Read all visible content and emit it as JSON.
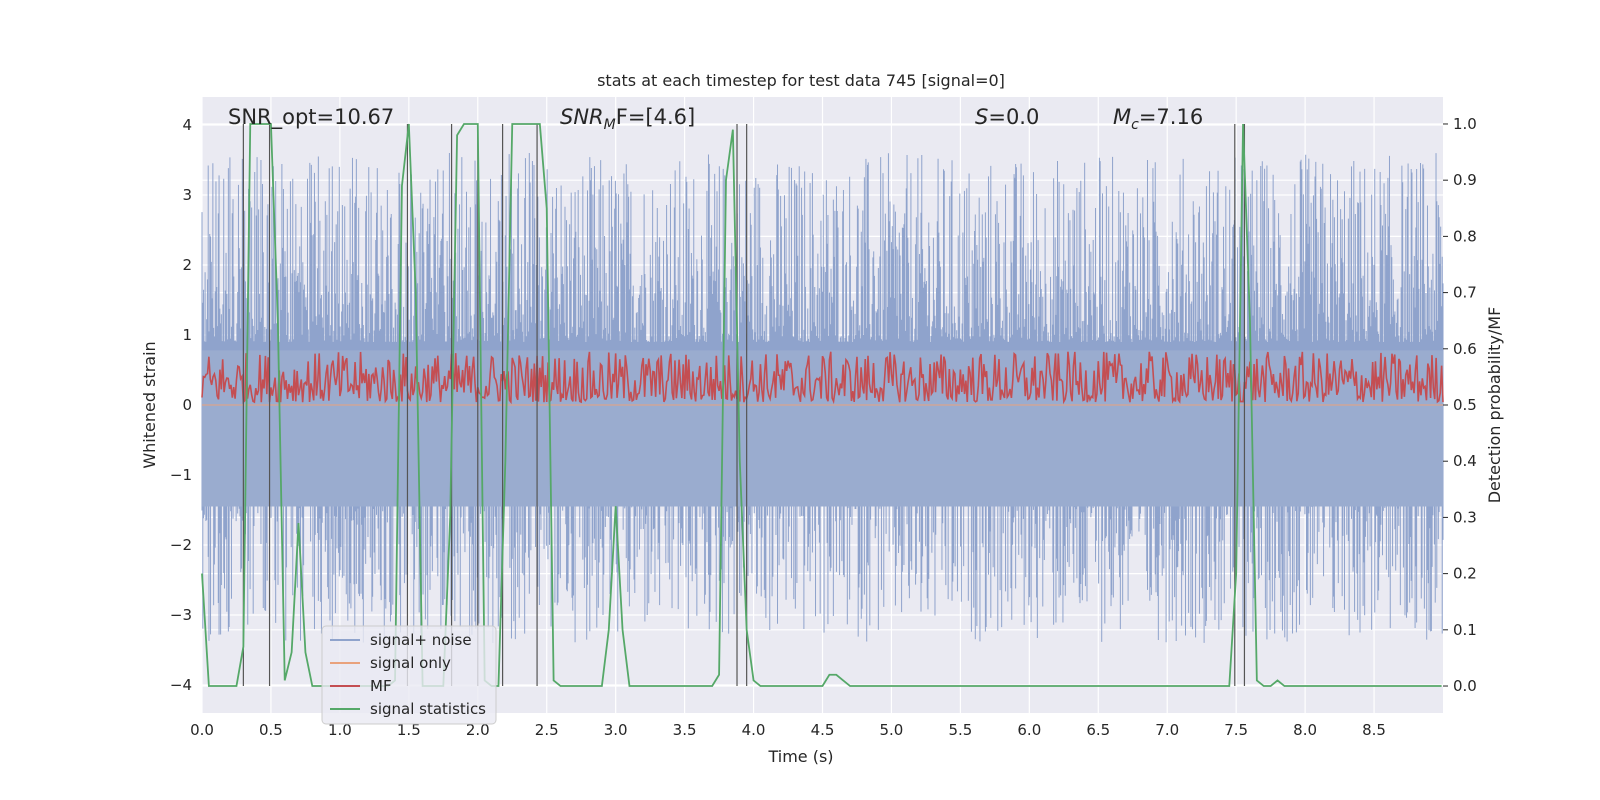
{
  "chart_data": {
    "type": "line",
    "title": "stats at each timestep for test data 745 [signal=0]",
    "xlabel": "Time (s)",
    "ylabel_left": "Whitened strain",
    "ylabel_right": "Detection probability/MF",
    "xlim": [
      0,
      9
    ],
    "ylim_left": [
      -4.4,
      4.4
    ],
    "ylim_right": [
      -0.048,
      1.048
    ],
    "grid": true,
    "x_ticks": [
      "0.0",
      "0.5",
      "1.0",
      "1.5",
      "2.0",
      "2.5",
      "3.0",
      "3.5",
      "4.0",
      "4.5",
      "5.0",
      "5.5",
      "6.0",
      "6.5",
      "7.0",
      "7.5",
      "8.0",
      "8.5"
    ],
    "y_ticks_left": [
      "−4",
      "−3",
      "−2",
      "−1",
      "0",
      "1",
      "2",
      "3",
      "4"
    ],
    "y_ticks_right": [
      "0.0",
      "0.1",
      "0.2",
      "0.3",
      "0.4",
      "0.5",
      "0.6",
      "0.7",
      "0.8",
      "0.9",
      "1.0"
    ],
    "annotations": {
      "snr_opt": "SNR_opt=10.67",
      "snr_mf_a": "SNR",
      "snr_mf_sub": "M",
      "snr_mf_b": "F=[4.6]",
      "s_a": "S",
      "s_b": "=0.0",
      "mc_a": "M",
      "mc_sub": "c",
      "mc_b": "=7.16"
    },
    "legend": {
      "location": "lower-left",
      "entries": [
        "signal+ noise",
        "signal only",
        "MF",
        "signal statistics"
      ]
    },
    "series": [
      {
        "name": "signal+ noise",
        "axis": "left",
        "color": "#8fa3cc",
        "description": "noisy whitened strain, amplitude approx ±3.5"
      },
      {
        "name": "signal only",
        "axis": "left",
        "color": "#e9a27c",
        "values": "zero"
      },
      {
        "name": "MF",
        "axis": "right",
        "color": "#c44e52",
        "range": [
          0.5,
          0.59
        ]
      },
      {
        "name": "signal statistics",
        "axis": "right",
        "color": "#55a868",
        "x": [
          0.0,
          0.05,
          0.1,
          0.15,
          0.2,
          0.25,
          0.3,
          0.35,
          0.4,
          0.45,
          0.5,
          0.55,
          0.6,
          0.65,
          0.7,
          0.75,
          0.8,
          0.85,
          0.9,
          0.95,
          1.0,
          1.05,
          1.1,
          1.15,
          1.2,
          1.25,
          1.3,
          1.35,
          1.4,
          1.45,
          1.5,
          1.55,
          1.6,
          1.65,
          1.7,
          1.75,
          1.8,
          1.85,
          1.9,
          1.95,
          2.0,
          2.05,
          2.1,
          2.15,
          2.2,
          2.25,
          2.3,
          2.35,
          2.4,
          2.45,
          2.5,
          2.55,
          2.6,
          2.65,
          2.7,
          2.8,
          2.9,
          2.95,
          3.0,
          3.05,
          3.1,
          3.15,
          3.2,
          3.4,
          3.6,
          3.7,
          3.75,
          3.8,
          3.85,
          3.9,
          3.95,
          4.0,
          4.05,
          4.1,
          4.2,
          4.3,
          4.4,
          4.5,
          4.55,
          4.6,
          4.65,
          4.7,
          4.75,
          4.8,
          5.0,
          6.0,
          7.0,
          7.4,
          7.45,
          7.5,
          7.55,
          7.6,
          7.65,
          7.7,
          7.75,
          7.8,
          7.85,
          7.9,
          7.95,
          8.0,
          8.5,
          8.99
        ],
        "values": [
          0.2,
          0.0,
          0.0,
          0.0,
          0.0,
          0.0,
          0.07,
          1.0,
          1.0,
          1.0,
          1.0,
          0.65,
          0.01,
          0.06,
          0.29,
          0.06,
          0.0,
          0.0,
          0.0,
          0.0,
          0.0,
          0.0,
          0.0,
          0.0,
          0.0,
          0.0,
          0.0,
          0.0,
          0.01,
          0.89,
          1.0,
          0.7,
          0.0,
          0.0,
          0.0,
          0.0,
          0.3,
          0.98,
          1.0,
          1.0,
          1.0,
          0.01,
          0.0,
          0.0,
          0.4,
          1.0,
          1.0,
          1.0,
          1.0,
          1.0,
          0.85,
          0.01,
          0.0,
          0.0,
          0.0,
          0.0,
          0.0,
          0.1,
          0.32,
          0.1,
          0.0,
          0.0,
          0.0,
          0.0,
          0.0,
          0.0,
          0.02,
          0.9,
          0.99,
          0.4,
          0.1,
          0.01,
          0.0,
          0.0,
          0.0,
          0.0,
          0.0,
          0.0,
          0.02,
          0.02,
          0.01,
          0.0,
          0.0,
          0.0,
          0.0,
          0.0,
          0.0,
          0.0,
          0.0,
          0.2,
          1.0,
          0.65,
          0.01,
          0.0,
          0.0,
          0.01,
          0.0,
          0.0,
          0.0,
          0.0,
          0.0,
          0.0
        ]
      }
    ],
    "vertical_lines_x": [
      0.3,
      0.49,
      1.49,
      1.81,
      2.0,
      2.18,
      2.43,
      3.88,
      3.95,
      7.49,
      7.56
    ]
  }
}
